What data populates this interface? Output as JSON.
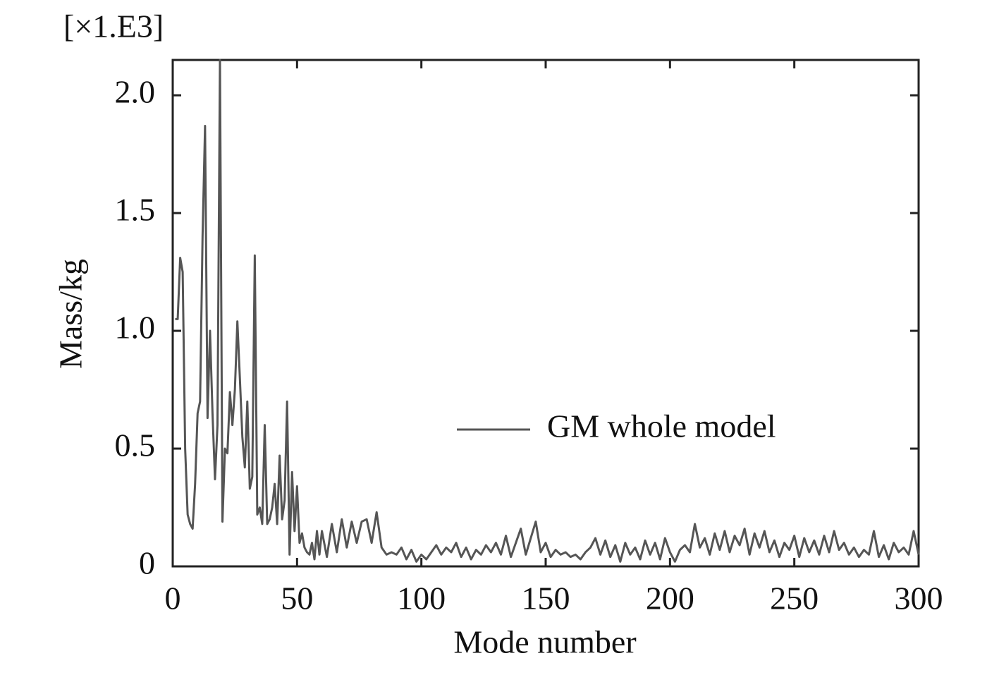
{
  "chart_data": {
    "type": "line",
    "y_scale_label": "[×1.E3]",
    "xlabel": "Mode number",
    "ylabel": "Mass/kg",
    "xlim": [
      0,
      300
    ],
    "ylim": [
      0,
      2.15
    ],
    "xticks": [
      0,
      50,
      100,
      150,
      200,
      250,
      300
    ],
    "yticks": [
      0,
      0.5,
      {
        "value": 1,
        "label": "1.0"
      },
      1.5,
      {
        "value": 2,
        "label": "2.0"
      }
    ],
    "legend": "center right",
    "x": [
      1,
      2,
      3,
      4,
      5,
      6,
      7,
      8,
      9,
      10,
      11,
      12,
      13,
      14,
      15,
      16,
      17,
      18,
      19,
      20,
      21,
      22,
      23,
      24,
      25,
      26,
      27,
      28,
      29,
      30,
      31,
      32,
      33,
      34,
      35,
      36,
      37,
      38,
      39,
      40,
      41,
      42,
      43,
      44,
      45,
      46,
      47,
      48,
      49,
      50,
      51,
      52,
      53,
      54,
      55,
      56,
      57,
      58,
      59,
      60,
      62,
      64,
      66,
      68,
      70,
      72,
      74,
      76,
      78,
      80,
      82,
      84,
      86,
      88,
      90,
      92,
      94,
      96,
      98,
      100,
      102,
      104,
      106,
      108,
      110,
      112,
      114,
      116,
      118,
      120,
      122,
      124,
      126,
      128,
      130,
      132,
      134,
      136,
      138,
      140,
      142,
      144,
      146,
      148,
      150,
      152,
      154,
      156,
      158,
      160,
      162,
      164,
      166,
      168,
      170,
      172,
      174,
      176,
      178,
      180,
      182,
      184,
      186,
      188,
      190,
      192,
      194,
      196,
      198,
      200,
      202,
      204,
      206,
      208,
      210,
      212,
      214,
      216,
      218,
      220,
      222,
      224,
      226,
      228,
      230,
      232,
      234,
      236,
      238,
      240,
      242,
      244,
      246,
      248,
      250,
      252,
      254,
      256,
      258,
      260,
      262,
      264,
      266,
      268,
      270,
      272,
      274,
      276,
      278,
      280,
      282,
      284,
      286,
      288,
      290,
      292,
      294,
      296,
      298,
      300
    ],
    "series": [
      {
        "name": "GM whole model",
        "color": "#555555",
        "values": [
          1.05,
          1.05,
          1.31,
          1.25,
          0.5,
          0.22,
          0.18,
          0.16,
          0.35,
          0.65,
          0.7,
          1.4,
          1.87,
          0.63,
          1.0,
          0.65,
          0.37,
          0.6,
          2.15,
          0.19,
          0.5,
          0.48,
          0.74,
          0.6,
          0.75,
          1.04,
          0.8,
          0.55,
          0.42,
          0.7,
          0.33,
          0.38,
          1.32,
          0.22,
          0.25,
          0.18,
          0.6,
          0.18,
          0.2,
          0.25,
          0.35,
          0.18,
          0.47,
          0.2,
          0.28,
          0.7,
          0.05,
          0.4,
          0.15,
          0.34,
          0.1,
          0.14,
          0.08,
          0.06,
          0.05,
          0.1,
          0.03,
          0.15,
          0.05,
          0.15,
          0.04,
          0.18,
          0.06,
          0.2,
          0.08,
          0.19,
          0.1,
          0.19,
          0.2,
          0.1,
          0.23,
          0.08,
          0.05,
          0.06,
          0.05,
          0.08,
          0.03,
          0.07,
          0.02,
          0.05,
          0.03,
          0.06,
          0.09,
          0.05,
          0.08,
          0.06,
          0.1,
          0.04,
          0.08,
          0.03,
          0.07,
          0.05,
          0.09,
          0.06,
          0.1,
          0.05,
          0.13,
          0.04,
          0.1,
          0.16,
          0.05,
          0.12,
          0.19,
          0.06,
          0.1,
          0.04,
          0.07,
          0.05,
          0.06,
          0.04,
          0.05,
          0.03,
          0.06,
          0.08,
          0.12,
          0.05,
          0.11,
          0.04,
          0.09,
          0.02,
          0.1,
          0.05,
          0.08,
          0.03,
          0.11,
          0.05,
          0.1,
          0.03,
          0.12,
          0.06,
          0.02,
          0.07,
          0.09,
          0.06,
          0.18,
          0.08,
          0.12,
          0.05,
          0.14,
          0.07,
          0.15,
          0.06,
          0.13,
          0.09,
          0.16,
          0.05,
          0.14,
          0.08,
          0.15,
          0.06,
          0.11,
          0.04,
          0.1,
          0.07,
          0.13,
          0.04,
          0.12,
          0.06,
          0.11,
          0.05,
          0.13,
          0.06,
          0.15,
          0.07,
          0.1,
          0.05,
          0.08,
          0.04,
          0.07,
          0.05,
          0.15,
          0.04,
          0.09,
          0.03,
          0.1,
          0.06,
          0.08,
          0.05,
          0.15,
          0.05
        ]
      }
    ]
  }
}
